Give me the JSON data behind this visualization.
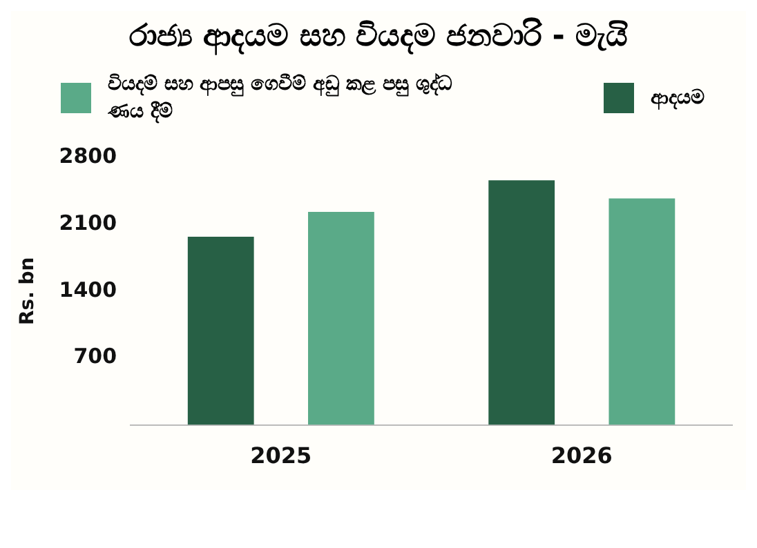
{
  "chart_data": {
    "type": "bar",
    "title": "රාජ්‍ය ආදයම සහ වියදම ජනවාරි - මැයි",
    "ylabel": "Rs. bn",
    "categories": [
      "2025",
      "2026"
    ],
    "series": [
      {
        "name": "ආදයම",
        "color": "#276045",
        "values": [
          1970,
          2560
        ]
      },
      {
        "name": "වියදම් සහ ආපසු ගෙවීම් අඩු කළ පසු ශුද්ධ ණය දීම්",
        "color": "#5aaa88",
        "values": [
          2230,
          2370
        ]
      }
    ],
    "ylim": [
      0,
      2800
    ],
    "yticks": [
      {
        "value": 0,
        "label": null
      },
      700,
      1400,
      2100,
      2800
    ],
    "grid": false,
    "legend": "top"
  }
}
